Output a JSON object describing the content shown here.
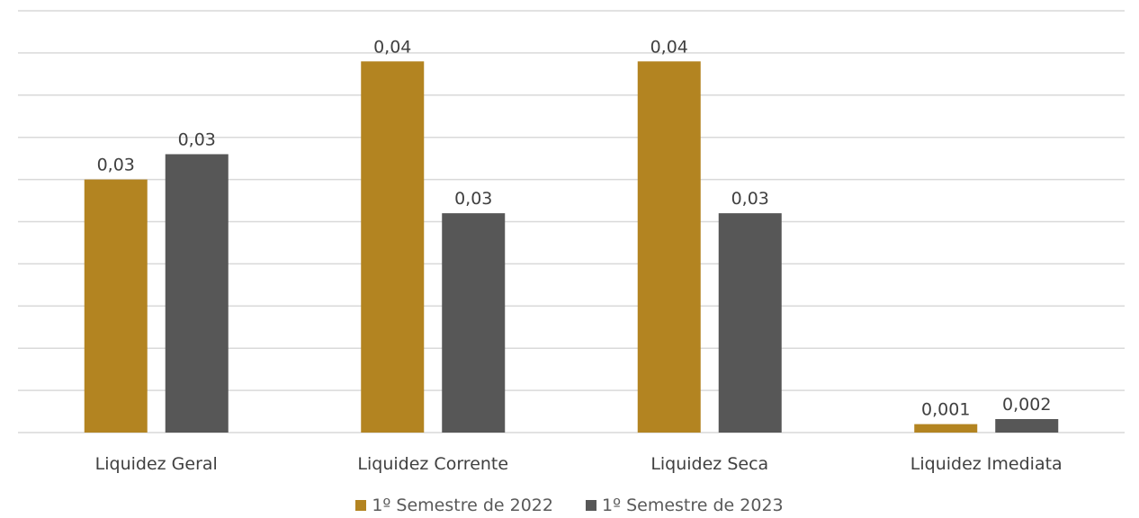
{
  "chart_data": {
    "type": "bar",
    "title": "",
    "xlabel": "",
    "ylabel": "",
    "ylim": [
      0,
      0.05
    ],
    "grid": true,
    "legend_position": "bottom",
    "categories": [
      "Liquidez Geral",
      "Liquidez Corrente",
      "Liquidez Seca",
      "Liquidez Imediata"
    ],
    "series": [
      {
        "name": "1º Semestre de 2022",
        "color": "#B38421",
        "values": [
          0.03,
          0.044,
          0.044,
          0.001
        ],
        "labels": [
          "0,03",
          "0,04",
          "0,04",
          "0,001"
        ]
      },
      {
        "name": "1º Semestre de 2023",
        "color": "#575757",
        "values": [
          0.033,
          0.026,
          0.026,
          0.0016
        ],
        "labels": [
          "0,03",
          "0,03",
          "0,03",
          "0,002"
        ]
      }
    ]
  }
}
